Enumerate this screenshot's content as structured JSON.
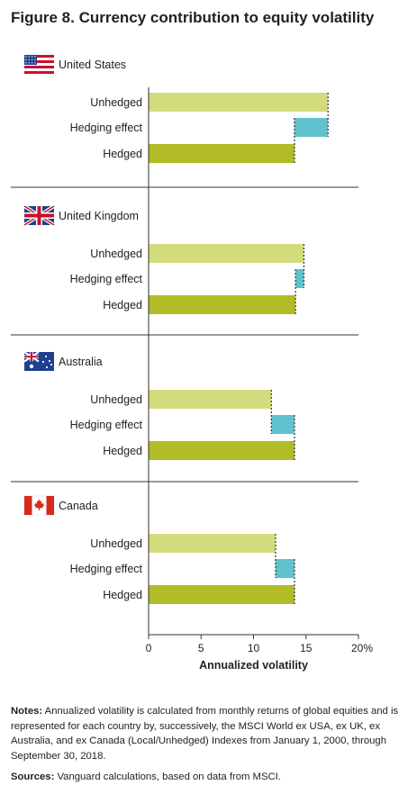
{
  "figure_title": "Figure 8. Currency contribution to equity volatility",
  "colors": {
    "unhedged": "#d3dc7c",
    "hedging_effect": "#5fc2cd",
    "hedged": "#b1bc26"
  },
  "chart_data": {
    "type": "bar",
    "orientation": "horizontal",
    "title": "Figure 8. Currency contribution to equity volatility",
    "xlabel": "Annualized volatility",
    "xlim": [
      0,
      20
    ],
    "xticks": [
      "0",
      "5",
      "10",
      "15",
      "20%"
    ],
    "categories": [
      "Unhedged",
      "Hedging effect",
      "Hedged"
    ],
    "groups": [
      {
        "name": "United States",
        "flag": "us-flag",
        "unhedged": 17.1,
        "hedging_effect": [
          13.9,
          17.1
        ],
        "hedged": 13.9
      },
      {
        "name": "United Kingdom",
        "flag": "uk-flag",
        "unhedged": 14.8,
        "hedging_effect": [
          14.0,
          14.8
        ],
        "hedged": 14.0
      },
      {
        "name": "Australia",
        "flag": "australia-flag",
        "unhedged": 11.7,
        "hedging_effect": [
          11.7,
          13.9
        ],
        "hedged": 13.9
      },
      {
        "name": "Canada",
        "flag": "canada-flag",
        "unhedged": 12.1,
        "hedging_effect": [
          12.1,
          13.9
        ],
        "hedged": 13.9
      }
    ],
    "grid": false,
    "legend": "none"
  },
  "notes": {
    "notes_label": "Notes:",
    "notes_text": " Annualized volatility is calculated from monthly returns of global equities and is represented for each country by, successively, the MSCI World ex USA, ex UK, ex Australia, and ex Canada (Local/Unhedged) Indexes from January 1, 2000, through September 30, 2018.",
    "sources_label": "Sources:",
    "sources_text": " Vanguard calculations, based on data from MSCI."
  }
}
